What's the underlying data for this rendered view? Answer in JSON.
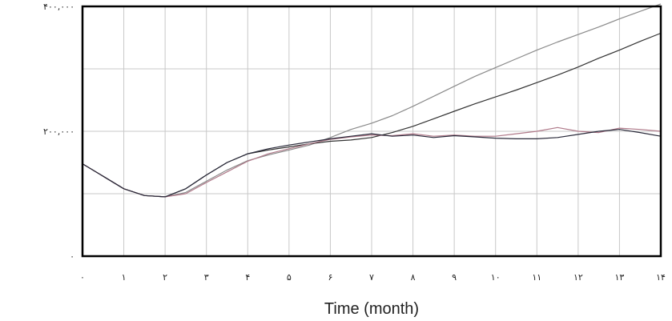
{
  "chart_data": {
    "type": "line",
    "title": "",
    "xlabel": "Time (month)",
    "ylabel": "",
    "xlim": [
      0,
      14
    ],
    "ylim": [
      0,
      400000
    ],
    "grid": true,
    "legend": "none",
    "x_tick_labels": [
      "۰",
      "۱",
      "۲",
      "۳",
      "۴",
      "۵",
      "۶",
      "۷",
      "۸",
      "۹",
      "۱۰",
      "۱۱",
      "۱۲",
      "۱۳",
      "۱۴"
    ],
    "y_ticks": [
      {
        "value": 400000,
        "label": "۴۰۰,۰۰۰"
      },
      {
        "value": 200000,
        "label": "۲۰۰,۰۰۰"
      },
      {
        "value": 0,
        "label": "۰"
      }
    ],
    "x": [
      0,
      0.5,
      1,
      1.5,
      2,
      2.5,
      3,
      3.5,
      4,
      4.5,
      5,
      5.5,
      6,
      6.5,
      7,
      7.5,
      8,
      8.5,
      9,
      9.5,
      10,
      10.5,
      11,
      11.5,
      12,
      12.5,
      13,
      13.5,
      14
    ],
    "series": [
      {
        "color": "#8a8a8a",
        "values": [
          148000,
          128000,
          108000,
          97000,
          95000,
          102000,
          120000,
          138000,
          153000,
          162000,
          170000,
          178000,
          190000,
          203000,
          213000,
          225000,
          240000,
          256000,
          272000,
          288000,
          302000,
          316000,
          330000,
          343000,
          355000,
          367000,
          380000,
          392000,
          404000
        ]
      },
      {
        "color": "#333333",
        "values": [
          148000,
          128000,
          108000,
          97000,
          95000,
          108000,
          130000,
          150000,
          164000,
          170000,
          175000,
          180000,
          184000,
          186000,
          190000,
          198000,
          208000,
          220000,
          232000,
          244000,
          255000,
          266000,
          278000,
          290000,
          303000,
          317000,
          330000,
          344000,
          357000
        ]
      },
      {
        "color": "#b07a8a",
        "values": [
          148000,
          128000,
          108000,
          97000,
          95000,
          100000,
          118000,
          135000,
          152000,
          164000,
          172000,
          180000,
          187000,
          191000,
          194000,
          193000,
          196000,
          192000,
          194000,
          192000,
          192000,
          196000,
          200000,
          206000,
          200000,
          198000,
          205000,
          203000,
          200000
        ]
      },
      {
        "color": "#2a2a3a",
        "values": [
          148000,
          128000,
          108000,
          97000,
          95000,
          108000,
          130000,
          150000,
          164000,
          172000,
          178000,
          183000,
          188000,
          192000,
          196000,
          192000,
          194000,
          190000,
          193000,
          191000,
          189000,
          188000,
          188000,
          190000,
          195000,
          200000,
          203000,
          198000,
          192000
        ]
      }
    ]
  }
}
